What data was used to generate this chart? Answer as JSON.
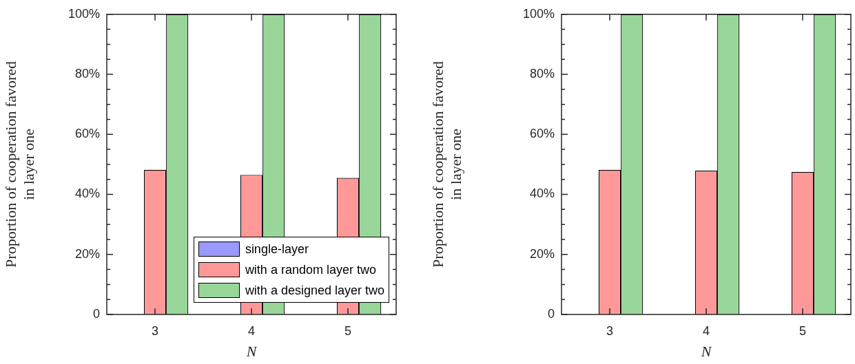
{
  "chart_data": [
    {
      "type": "bar",
      "xlabel": "N",
      "ylabel": "Proportion of cooperation favored\nin layer one",
      "categories": [
        "3",
        "4",
        "5"
      ],
      "series": [
        {
          "name": "single-layer",
          "color": "#9999ff",
          "values": [
            0,
            0,
            0
          ]
        },
        {
          "name": "with a random layer two",
          "color": "#ff9999",
          "values": [
            48.2,
            46.5,
            45.5
          ]
        },
        {
          "name": "with a designed layer two",
          "color": "#99d699",
          "values": [
            100,
            100,
            100
          ]
        }
      ],
      "ylim": [
        0,
        100
      ],
      "yticks": [
        {
          "value": 0,
          "label": "0"
        },
        {
          "value": 5,
          "label": null
        },
        {
          "value": 10,
          "label": null
        },
        {
          "value": 15,
          "label": null
        },
        {
          "value": 20,
          "label": "20%"
        },
        {
          "value": 25,
          "label": null
        },
        {
          "value": 30,
          "label": null
        },
        {
          "value": 35,
          "label": null
        },
        {
          "value": 40,
          "label": "40%"
        },
        {
          "value": 45,
          "label": null
        },
        {
          "value": 50,
          "label": null
        },
        {
          "value": 55,
          "label": null
        },
        {
          "value": 60,
          "label": "60%"
        },
        {
          "value": 65,
          "label": null
        },
        {
          "value": 70,
          "label": null
        },
        {
          "value": 75,
          "label": null
        },
        {
          "value": 80,
          "label": "80%"
        },
        {
          "value": 85,
          "label": null
        },
        {
          "value": 90,
          "label": null
        },
        {
          "value": 95,
          "label": null
        },
        {
          "value": 100,
          "label": "100%"
        }
      ],
      "legend": "bottom right",
      "grid": false
    },
    {
      "type": "bar",
      "xlabel": "N",
      "ylabel": "Proportion of cooperation favored\nin layer one",
      "categories": [
        "3",
        "4",
        "5"
      ],
      "series": [
        {
          "color": "#9999ff",
          "values": [
            0,
            0,
            0
          ]
        },
        {
          "color": "#ff9999",
          "values": [
            48.2,
            47.9,
            47.5
          ]
        },
        {
          "color": "#99d699",
          "values": [
            100,
            100,
            100
          ]
        }
      ],
      "ylim": [
        0,
        100
      ],
      "yticks": [
        {
          "value": 0,
          "label": "0"
        },
        {
          "value": 5,
          "label": null
        },
        {
          "value": 10,
          "label": null
        },
        {
          "value": 15,
          "label": null
        },
        {
          "value": 20,
          "label": "20%"
        },
        {
          "value": 25,
          "label": null
        },
        {
          "value": 30,
          "label": null
        },
        {
          "value": 35,
          "label": null
        },
        {
          "value": 40,
          "label": "40%"
        },
        {
          "value": 45,
          "label": null
        },
        {
          "value": 50,
          "label": null
        },
        {
          "value": 55,
          "label": null
        },
        {
          "value": 60,
          "label": "60%"
        },
        {
          "value": 65,
          "label": null
        },
        {
          "value": 70,
          "label": null
        },
        {
          "value": 75,
          "label": null
        },
        {
          "value": 80,
          "label": "80%"
        },
        {
          "value": 85,
          "label": null
        },
        {
          "value": 90,
          "label": null
        },
        {
          "value": 95,
          "label": null
        },
        {
          "value": 100,
          "label": "100%"
        }
      ],
      "legend": false,
      "grid": false
    }
  ]
}
